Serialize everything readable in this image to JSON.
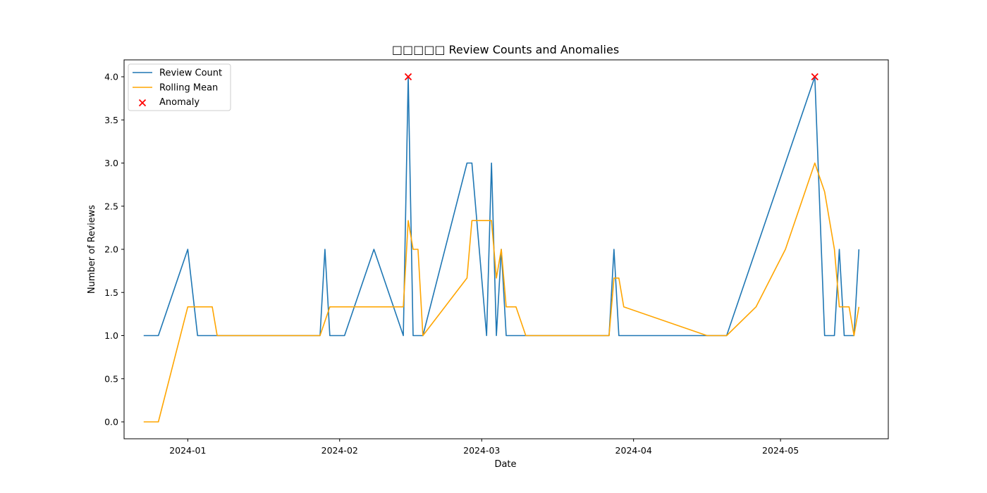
{
  "chart_data": {
    "type": "line",
    "title": "□□□□□ Review Counts and Anomalies",
    "xlabel": "Date",
    "ylabel": "Number of Reviews",
    "ylim": [
      0,
      4
    ],
    "yticks": [
      "0.0",
      "0.5",
      "1.0",
      "1.5",
      "2.0",
      "2.5",
      "3.0",
      "3.5",
      "4.0"
    ],
    "xticks": [
      "2024-01",
      "2024-02",
      "2024-03",
      "2024-04",
      "2024-05"
    ],
    "xlim": [
      "2023-12-19",
      "2024-05-23"
    ],
    "grid": false,
    "legend_position": "top-left",
    "series": [
      {
        "name": "Review Count",
        "color": "#1f77b4",
        "x": [
          "2023-12-23",
          "2023-12-26",
          "2024-01-01",
          "2024-01-03",
          "2024-01-07",
          "2024-01-28",
          "2024-01-29",
          "2024-01-30",
          "2024-02-02",
          "2024-02-08",
          "2024-02-14",
          "2024-02-15",
          "2024-02-16",
          "2024-02-18",
          "2024-02-27",
          "2024-02-28",
          "2024-03-02",
          "2024-03-03",
          "2024-03-04",
          "2024-03-05",
          "2024-03-06",
          "2024-03-10",
          "2024-03-27",
          "2024-03-28",
          "2024-03-29",
          "2024-04-20",
          "2024-05-08",
          "2024-05-10",
          "2024-05-12",
          "2024-05-13",
          "2024-05-14",
          "2024-05-16",
          "2024-05-17"
        ],
        "y": [
          1,
          1,
          2,
          1,
          1,
          1,
          2,
          1,
          1,
          2,
          1,
          4,
          1,
          1,
          3,
          3,
          1,
          3,
          1,
          2,
          1,
          1,
          1,
          2,
          1,
          1,
          4,
          1,
          1,
          2,
          1,
          1,
          2
        ]
      },
      {
        "name": "Rolling Mean",
        "color": "#ffa500",
        "x": [
          "2023-12-23",
          "2023-12-26",
          "2024-01-01",
          "2024-01-06",
          "2024-01-07",
          "2024-01-28",
          "2024-01-30",
          "2024-02-14",
          "2024-02-15",
          "2024-02-16",
          "2024-02-17",
          "2024-02-18",
          "2024-02-27",
          "2024-02-28",
          "2024-03-03",
          "2024-03-04",
          "2024-03-05",
          "2024-03-06",
          "2024-03-08",
          "2024-03-10",
          "2024-03-27",
          "2024-03-28",
          "2024-03-29",
          "2024-03-30",
          "2024-04-16",
          "2024-04-20",
          "2024-04-26",
          "2024-05-02",
          "2024-05-08",
          "2024-05-10",
          "2024-05-12",
          "2024-05-13",
          "2024-05-15",
          "2024-05-16",
          "2024-05-17"
        ],
        "y": [
          0,
          0,
          1.333,
          1.333,
          1,
          1,
          1.333,
          1.333,
          2.333,
          2,
          2,
          1,
          1.667,
          2.333,
          2.333,
          1.667,
          2,
          1.333,
          1.333,
          1,
          1,
          1.667,
          1.667,
          1.333,
          1,
          1,
          1.333,
          2,
          3,
          2.667,
          2,
          1.333,
          1.333,
          1,
          1.333
        ]
      }
    ],
    "anomalies": {
      "name": "Anomaly",
      "color": "#ff0000",
      "x": [
        "2024-02-15",
        "2024-05-08"
      ],
      "y": [
        4,
        4
      ]
    }
  }
}
